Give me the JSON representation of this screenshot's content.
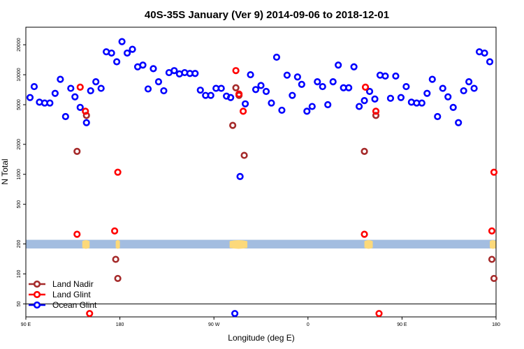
{
  "chart_data": {
    "type": "scatter",
    "title": "40S-35S January (Ver 9)   2014-09-06 to 2018-12-01",
    "xlabel": "Longitude (deg E)",
    "ylabel": "N Total",
    "y_scale": "log",
    "x_ticks": [
      {
        "value": 90,
        "label": "90 E"
      },
      {
        "value": 180,
        "label": "180"
      },
      {
        "value": 270,
        "label": "90 W"
      },
      {
        "value": 360,
        "label": "0"
      },
      {
        "value": 450,
        "label": "90 E"
      },
      {
        "value": 540,
        "label": "180"
      }
    ],
    "y_ticks": [
      {
        "value": 50,
        "label": "50"
      },
      {
        "value": 100,
        "label": "100"
      },
      {
        "value": 200,
        "label": "200"
      },
      {
        "value": 500,
        "label": "500"
      },
      {
        "value": 1000,
        "label": "1000"
      },
      {
        "value": 2000,
        "label": "2000"
      },
      {
        "value": 5000,
        "label": "5000"
      },
      {
        "value": 10000,
        "label": "10000"
      },
      {
        "value": 20000,
        "label": "20000"
      }
    ],
    "xlim": [
      90,
      540
    ],
    "ylim": [
      37,
      30000
    ],
    "threshold_line": 50,
    "land_band": {
      "y_min": 180,
      "y_max": 220,
      "color": "#a3bde0"
    },
    "land_patch_color": "#fcd97a",
    "land_patches": [
      {
        "x_start": 144,
        "x_end": 151
      },
      {
        "x_start": 176,
        "x_end": 180
      },
      {
        "x_start": 285,
        "x_end": 302
      },
      {
        "x_start": 414,
        "x_end": 422
      },
      {
        "x_start": 534,
        "x_end": 540
      }
    ],
    "legend_position": "bottom-left",
    "series": [
      {
        "name": "Land Nadir",
        "color": "#a52a2a",
        "points": [
          [
            139,
            1700
          ],
          [
            148,
            3900
          ],
          [
            176,
            140
          ],
          [
            178,
            90
          ],
          [
            288,
            3100
          ],
          [
            291,
            7400
          ],
          [
            294,
            6200
          ],
          [
            299,
            1550
          ],
          [
            414,
            1700
          ],
          [
            425,
            3900
          ],
          [
            536,
            140
          ],
          [
            538,
            90
          ]
        ]
      },
      {
        "name": "Land Glint",
        "color": "#ff0000",
        "points": [
          [
            139,
            250
          ],
          [
            142,
            7500
          ],
          [
            147,
            4300
          ],
          [
            151,
            40
          ],
          [
            175,
            270
          ],
          [
            178,
            1050
          ],
          [
            291,
            11000
          ],
          [
            294,
            6400
          ],
          [
            298,
            4300
          ],
          [
            414,
            250
          ],
          [
            415,
            7500
          ],
          [
            425,
            4300
          ],
          [
            428,
            40
          ],
          [
            536,
            270
          ],
          [
            538,
            1050
          ]
        ]
      },
      {
        "name": "Ocean Glint",
        "color": "#0000ff",
        "points": [
          [
            94,
            5900
          ],
          [
            98,
            7600
          ],
          [
            103,
            5300
          ],
          [
            108,
            5200
          ],
          [
            113,
            5200
          ],
          [
            118,
            6500
          ],
          [
            123,
            9000
          ],
          [
            128,
            3800
          ],
          [
            133,
            7300
          ],
          [
            137,
            6000
          ],
          [
            142,
            4700
          ],
          [
            148,
            3300
          ],
          [
            152,
            6900
          ],
          [
            157,
            8500
          ],
          [
            162,
            7300
          ],
          [
            167,
            17000
          ],
          [
            172,
            16500
          ],
          [
            177,
            13500
          ],
          [
            182,
            21500
          ],
          [
            187,
            16500
          ],
          [
            192,
            18000
          ],
          [
            197,
            12000
          ],
          [
            202,
            12500
          ],
          [
            207,
            7200
          ],
          [
            212,
            11500
          ],
          [
            217,
            8500
          ],
          [
            222,
            6900
          ],
          [
            227,
            10500
          ],
          [
            232,
            11000
          ],
          [
            237,
            10200
          ],
          [
            242,
            10500
          ],
          [
            247,
            10300
          ],
          [
            252,
            10300
          ],
          [
            257,
            7000
          ],
          [
            262,
            6200
          ],
          [
            267,
            6200
          ],
          [
            272,
            7300
          ],
          [
            277,
            7300
          ],
          [
            282,
            6100
          ],
          [
            286,
            5900
          ],
          [
            290,
            40
          ],
          [
            295,
            950
          ],
          [
            300,
            5100
          ],
          [
            305,
            10000
          ],
          [
            310,
            7100
          ],
          [
            315,
            7800
          ],
          [
            320,
            6800
          ],
          [
            325,
            5200
          ],
          [
            330,
            15000
          ],
          [
            335,
            4400
          ],
          [
            340,
            9900
          ],
          [
            345,
            6200
          ],
          [
            350,
            9500
          ],
          [
            354,
            8000
          ],
          [
            359,
            4300
          ],
          [
            364,
            4800
          ],
          [
            369,
            8500
          ],
          [
            374,
            7600
          ],
          [
            379,
            5000
          ],
          [
            384,
            8500
          ],
          [
            389,
            12500
          ],
          [
            394,
            7400
          ],
          [
            399,
            7400
          ],
          [
            404,
            12000
          ],
          [
            409,
            4800
          ],
          [
            414,
            5500
          ],
          [
            419,
            6800
          ],
          [
            424,
            5700
          ],
          [
            429,
            9900
          ],
          [
            434,
            9700
          ],
          [
            439,
            5800
          ],
          [
            444,
            9700
          ],
          [
            449,
            5900
          ],
          [
            454,
            7600
          ],
          [
            459,
            5300
          ],
          [
            464,
            5200
          ],
          [
            469,
            5200
          ],
          [
            474,
            6500
          ],
          [
            479,
            9000
          ],
          [
            484,
            3800
          ],
          [
            489,
            7300
          ],
          [
            494,
            6000
          ],
          [
            499,
            4700
          ],
          [
            504,
            3300
          ],
          [
            509,
            6900
          ],
          [
            514,
            8500
          ],
          [
            519,
            7300
          ],
          [
            524,
            17000
          ],
          [
            529,
            16500
          ],
          [
            534,
            13500
          ]
        ]
      }
    ]
  }
}
